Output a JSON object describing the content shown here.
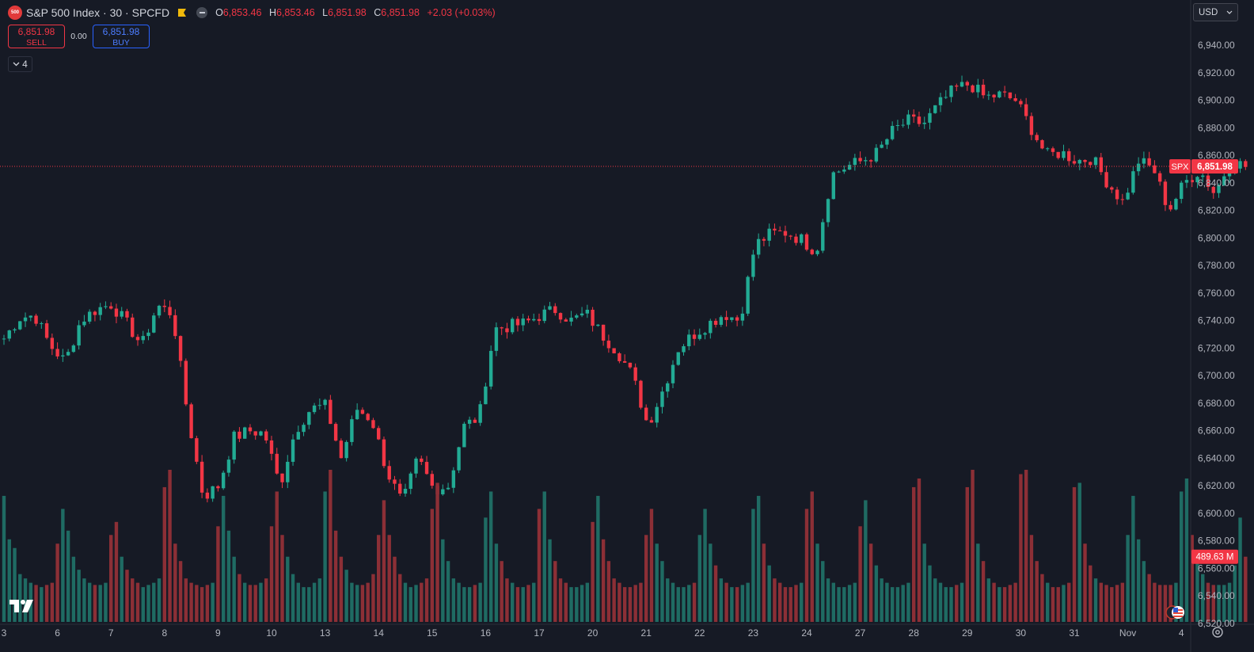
{
  "header": {
    "logo_text": "500",
    "title": "S&P 500 Index · 30 · SPCFD",
    "ohlc": [
      {
        "key": "O",
        "value": "6,853.46"
      },
      {
        "key": "H",
        "value": "6,853.46"
      },
      {
        "key": "L",
        "value": "6,851.98"
      },
      {
        "key": "C",
        "value": "6,851.98"
      },
      {
        "key": "",
        "value": "+2.03 (+0.03%)"
      }
    ]
  },
  "trade": {
    "sell_price": "6,851.98",
    "sell_label": "SELL",
    "spread": "0.00",
    "buy_price": "6,851.98",
    "buy_label": "BUY"
  },
  "indicators_toggle": {
    "count": "4"
  },
  "currency": {
    "selected": "USD"
  },
  "colors": {
    "up": "#22ab94",
    "down": "#f23645",
    "up_volume": "#1f6b63",
    "down_volume": "#8c2f36",
    "background": "#161a25",
    "text": "#b2b5be",
    "axis_line": "#2a2e39"
  },
  "icons": [
    "symbol-logo-icon",
    "flag-icon",
    "market-status-icon",
    "chevron-down-icon",
    "tradingview-logo-icon",
    "settings-gear-icon",
    "us-flag-icon"
  ],
  "chart_data": {
    "type": "candlestick",
    "symbol": "SPX",
    "last_price": 6851.98,
    "last_price_label": "6,851.98",
    "volume_label": "489.63 M",
    "volume_last": 489.63,
    "ylim": [
      6515,
      6965
    ],
    "y_ticks": [
      6520,
      6540,
      6560,
      6580,
      6600,
      6620,
      6640,
      6660,
      6680,
      6700,
      6720,
      6740,
      6760,
      6780,
      6800,
      6820,
      6840,
      6860,
      6880,
      6900,
      6920,
      6940
    ],
    "y_tick_labels": [
      "6,520.00",
      "6,540.00",
      "6,560.00",
      "6,580.00",
      "6,600.00",
      "6,620.00",
      "6,640.00",
      "6,660.00",
      "6,680.00",
      "6,700.00",
      "6,720.00",
      "6,740.00",
      "6,760.00",
      "6,780.00",
      "6,800.00",
      "6,820.00",
      "6,840.00",
      "6,860.00",
      "6,880.00",
      "6,900.00",
      "6,920.00",
      "6,940.00"
    ],
    "x_ticks": [
      {
        "label": "3",
        "bar": 0
      },
      {
        "label": "6",
        "bar": 10
      },
      {
        "label": "7",
        "bar": 20
      },
      {
        "label": "8",
        "bar": 30
      },
      {
        "label": "9",
        "bar": 40
      },
      {
        "label": "10",
        "bar": 50
      },
      {
        "label": "13",
        "bar": 60
      },
      {
        "label": "14",
        "bar": 70
      },
      {
        "label": "15",
        "bar": 80
      },
      {
        "label": "16",
        "bar": 90
      },
      {
        "label": "17",
        "bar": 100
      },
      {
        "label": "20",
        "bar": 110
      },
      {
        "label": "21",
        "bar": 120
      },
      {
        "label": "22",
        "bar": 130
      },
      {
        "label": "23",
        "bar": 140
      },
      {
        "label": "24",
        "bar": 150
      },
      {
        "label": "27",
        "bar": 160
      },
      {
        "label": "28",
        "bar": 170
      },
      {
        "label": "29",
        "bar": 180
      },
      {
        "label": "30",
        "bar": 190
      },
      {
        "label": "31",
        "bar": 200
      },
      {
        "label": "Nov",
        "bar": 210
      },
      {
        "label": "4",
        "bar": 220
      }
    ],
    "day_closes": [
      6727,
      6742,
      6744,
      6722,
      6710,
      6740,
      6748,
      6752,
      6738,
      6722,
      6751,
      6745,
      6670,
      6612,
      6620,
      6655,
      6660,
      6658,
      6620,
      6660,
      6676,
      6678,
      6640,
      6676,
      6668,
      6630,
      6607,
      6640,
      6618,
      6620,
      6663,
      6670,
      6734,
      6736,
      6738,
      6744,
      6748,
      6740,
      6745,
      6730,
      6718,
      6700,
      6664,
      6690,
      6720,
      6730,
      6738,
      6745,
      6740,
      6795,
      6803,
      6804,
      6799,
      6790,
      6846,
      6852,
      6856,
      6862,
      6878,
      6885,
      6883,
      6897,
      6908,
      6912,
      6902,
      6904,
      6900,
      6880,
      6860,
      6862,
      6856,
      6858,
      6840,
      6826,
      6856,
      6850,
      6820,
      6840,
      6849,
      6832,
      6856,
      6852
    ],
    "volumes": [
      58,
      38,
      34,
      22,
      20,
      18,
      17,
      16,
      17,
      18,
      36,
      52,
      42,
      30,
      24,
      20,
      18,
      17,
      17,
      18,
      40,
      46,
      30,
      24,
      20,
      18,
      16,
      17,
      18,
      20,
      62,
      70,
      36,
      28,
      20,
      18,
      17,
      16,
      17,
      18,
      44,
      58,
      42,
      30,
      22,
      18,
      17,
      17,
      18,
      20,
      44,
      60,
      40,
      30,
      22,
      18,
      16,
      16,
      18,
      20,
      60,
      70,
      42,
      30,
      24,
      18,
      17,
      17,
      18,
      22,
      40,
      56,
      40,
      30,
      22,
      18,
      16,
      17,
      18,
      20,
      52,
      64,
      38,
      28,
      20,
      18,
      16,
      16,
      17,
      18,
      48,
      60,
      36,
      28,
      20,
      18,
      16,
      16,
      17,
      18,
      52,
      60,
      38,
      28,
      20,
      18,
      16,
      16,
      17,
      18,
      46,
      58,
      38,
      28,
      20,
      18,
      16,
      16,
      17,
      18,
      40,
      52,
      36,
      28,
      20,
      18,
      16,
      16,
      17,
      18,
      40,
      52,
      36,
      26,
      20,
      18,
      16,
      16,
      17,
      18,
      52,
      58,
      36,
      26,
      20,
      18,
      16,
      16,
      17,
      18,
      52,
      60,
      36,
      28,
      20,
      18,
      16,
      16,
      17,
      18,
      44,
      56,
      36,
      26,
      20,
      18,
      16,
      16,
      17,
      18,
      62,
      66,
      36,
      26,
      20,
      18,
      16,
      16,
      17,
      18,
      62,
      70,
      36,
      28,
      20,
      18,
      16,
      16,
      17,
      18,
      68,
      70,
      40,
      28,
      22,
      18,
      16,
      16,
      17,
      18,
      62,
      64,
      36,
      26,
      20,
      18,
      17,
      16,
      17,
      18,
      40,
      58,
      38,
      28,
      22,
      18,
      17,
      17,
      17,
      18,
      60,
      66,
      40,
      28,
      22,
      18,
      17,
      17,
      17,
      18,
      26,
      48,
      30
    ]
  }
}
